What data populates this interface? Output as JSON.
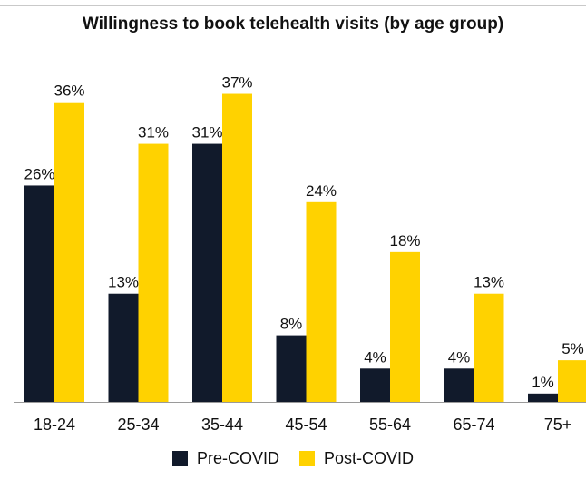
{
  "chart_data": {
    "type": "bar",
    "title": "Willingness to book telehealth visits (by age group)",
    "categories": [
      "18-24",
      "25-34",
      "35-44",
      "45-54",
      "55-64",
      "65-74",
      "75+"
    ],
    "series": [
      {
        "name": "Pre-COVID",
        "values": [
          26,
          13,
          31,
          8,
          4,
          4,
          1
        ],
        "color": "#111a2b"
      },
      {
        "name": "Post-COVID",
        "values": [
          36,
          31,
          37,
          24,
          18,
          13,
          5
        ],
        "color": "#ffd200"
      }
    ],
    "value_suffix": "%",
    "ylim": [
      0,
      40
    ],
    "xlabel": "",
    "ylabel": "",
    "grid": false,
    "legend_position": "bottom"
  }
}
